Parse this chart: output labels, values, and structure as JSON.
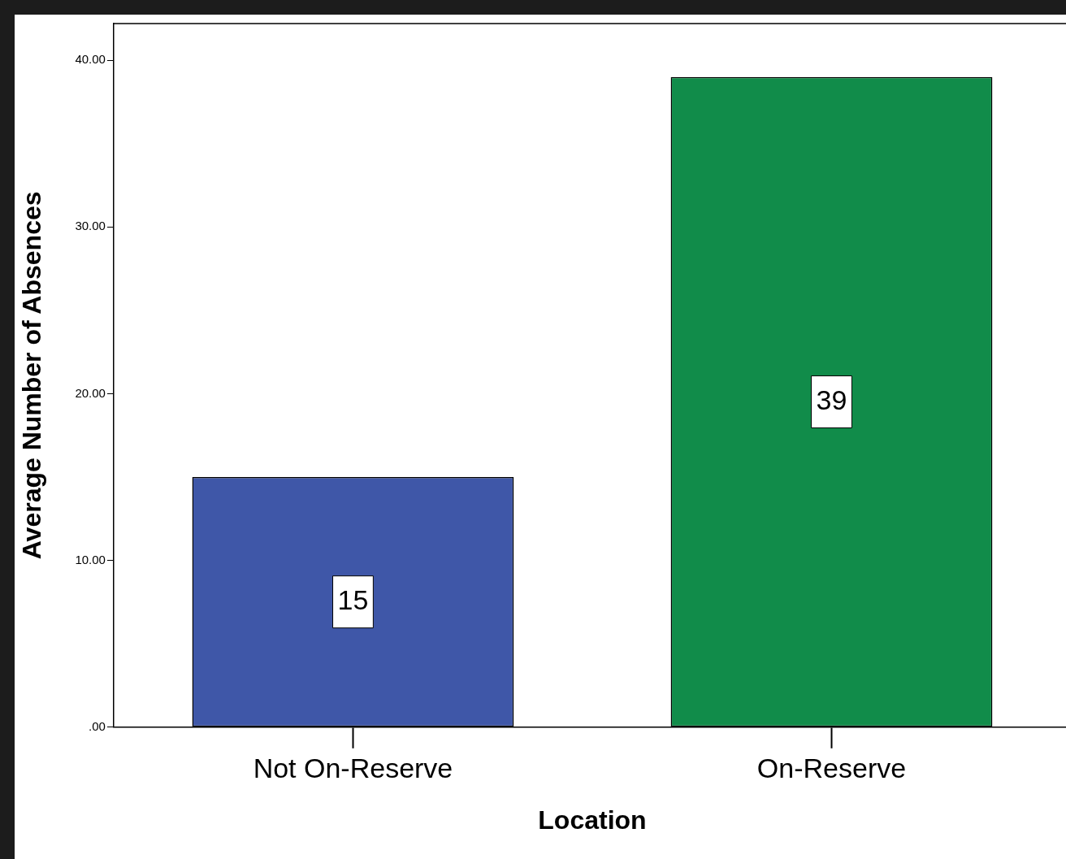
{
  "chart_data": {
    "type": "bar",
    "xlabel": "Location",
    "ylabel": "Average Number of Absences",
    "categories": [
      "Not On-Reserve",
      "On-Reserve"
    ],
    "values": [
      15,
      39
    ],
    "colors": [
      "#3f57a8",
      "#118c4a"
    ],
    "ylim": [
      0,
      42.2
    ],
    "yticks": [
      {
        "value": 0,
        "label": ".00"
      },
      {
        "value": 10,
        "label": "10.00"
      },
      {
        "value": 20,
        "label": "20.00"
      },
      {
        "value": 30,
        "label": "30.00"
      },
      {
        "value": 40,
        "label": "40.00"
      }
    ],
    "data_labels": true,
    "grid": false,
    "legend": false
  }
}
